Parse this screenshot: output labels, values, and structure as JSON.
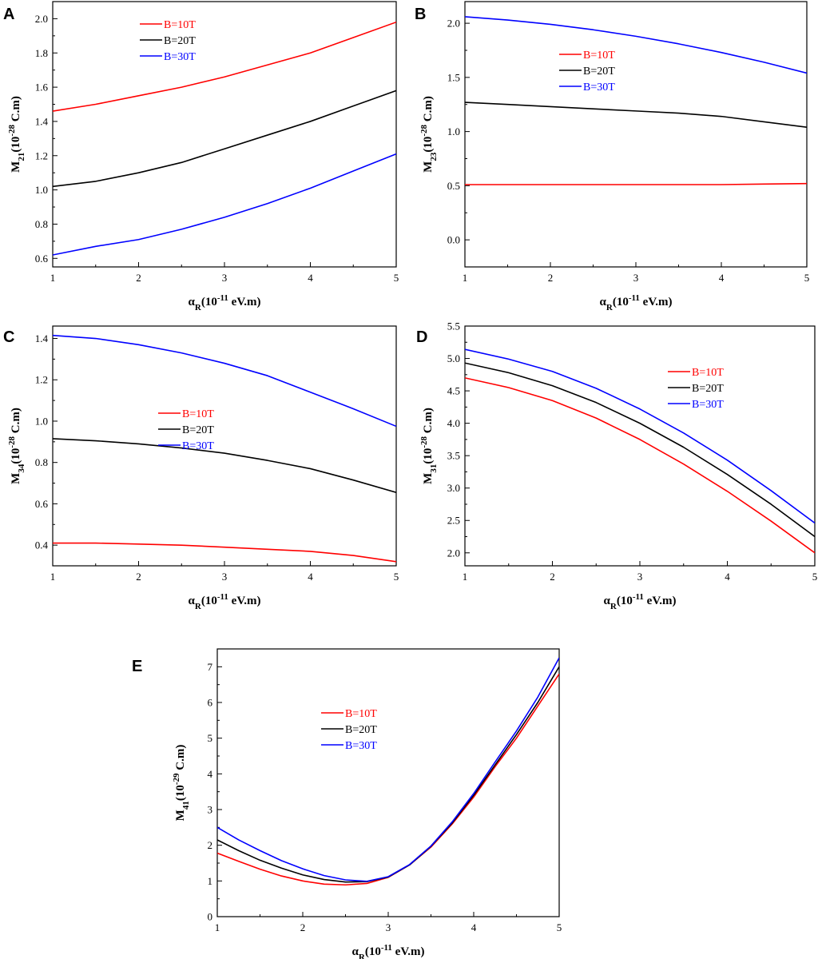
{
  "figure": {
    "panel_letters": [
      "A",
      "B",
      "C",
      "D",
      "E"
    ]
  },
  "colors": {
    "B10": "#ff0000",
    "B20": "#000000",
    "B30": "#0000ff"
  },
  "chart_data": [
    {
      "type": "line",
      "panel": "A",
      "ylabel": {
        "base": "M",
        "sub": "21",
        "pre": "(10",
        "sup": "-28",
        "post": " C.m)"
      },
      "xlabel": {
        "base": "α",
        "sub": "R",
        "pre": "(10",
        "sup": "-11",
        "post": " eV.m)"
      },
      "xlim": [
        1,
        5
      ],
      "ylim": [
        0.55,
        2.1
      ],
      "xticks": [
        1,
        2,
        3,
        4,
        5
      ],
      "yticks": [
        0.6,
        0.8,
        1.0,
        1.2,
        1.4,
        1.6,
        1.8,
        2.0
      ],
      "yticklabels": [
        "0.6",
        "0.8",
        "1.0",
        "1.2",
        "1.4",
        "1.6",
        "1.8",
        "2.0"
      ],
      "legend": {
        "position": "top-left"
      },
      "x": [
        1,
        1.5,
        2,
        2.5,
        3,
        3.5,
        4,
        4.5,
        5
      ],
      "series": [
        {
          "name": "B=10T",
          "color": "#ff0000",
          "values": [
            1.46,
            1.5,
            1.55,
            1.6,
            1.66,
            1.73,
            1.8,
            1.89,
            1.98
          ]
        },
        {
          "name": "B=20T",
          "color": "#000000",
          "values": [
            1.02,
            1.05,
            1.1,
            1.16,
            1.24,
            1.32,
            1.4,
            1.49,
            1.58
          ]
        },
        {
          "name": "B=30T",
          "color": "#0000ff",
          "values": [
            0.62,
            0.67,
            0.71,
            0.77,
            0.84,
            0.92,
            1.01,
            1.11,
            1.21
          ]
        }
      ]
    },
    {
      "type": "line",
      "panel": "B",
      "ylabel": {
        "base": "M",
        "sub": "23",
        "pre": "(10",
        "sup": "-28",
        "post": " C.m)"
      },
      "xlabel": {
        "base": "α",
        "sub": "R",
        "pre": "(10",
        "sup": "-11",
        "post": " eV.m)"
      },
      "xlim": [
        1,
        5
      ],
      "ylim": [
        -0.25,
        2.2
      ],
      "xticks": [
        1,
        2,
        3,
        4,
        5
      ],
      "yticks": [
        0,
        0.5,
        1.0,
        1.5,
        2.0
      ],
      "yticklabels": [
        "0.0",
        "0.5",
        "1.0",
        "1.5",
        "2.0"
      ],
      "legend": {
        "position": "upper-center"
      },
      "x": [
        1,
        1.5,
        2,
        2.5,
        3,
        3.5,
        4,
        4.5,
        5
      ],
      "series": [
        {
          "name": "B=10T",
          "color": "#ff0000",
          "values": [
            0.51,
            0.51,
            0.51,
            0.51,
            0.51,
            0.51,
            0.51,
            0.515,
            0.52
          ]
        },
        {
          "name": "B=20T",
          "color": "#000000",
          "values": [
            1.27,
            1.25,
            1.23,
            1.21,
            1.19,
            1.17,
            1.14,
            1.09,
            1.04
          ]
        },
        {
          "name": "B=30T",
          "color": "#0000ff",
          "values": [
            2.06,
            2.03,
            1.99,
            1.94,
            1.88,
            1.81,
            1.73,
            1.64,
            1.54
          ]
        }
      ]
    },
    {
      "type": "line",
      "panel": "C",
      "ylabel": {
        "base": "M",
        "sub": "34",
        "pre": "(10",
        "sup": "-28",
        "post": " C.m)"
      },
      "xlabel": {
        "base": "α",
        "sub": "R",
        "pre": "(10",
        "sup": "-11",
        "post": " eV.m)"
      },
      "xlim": [
        1,
        5
      ],
      "ylim": [
        0.3,
        1.46
      ],
      "xticks": [
        1,
        2,
        3,
        4,
        5
      ],
      "yticks": [
        0.4,
        0.6,
        0.8,
        1.0,
        1.2,
        1.4
      ],
      "yticklabels": [
        "0.4",
        "0.6",
        "0.8",
        "1.0",
        "1.2",
        "1.4"
      ],
      "legend": {
        "position": "center"
      },
      "x": [
        1,
        1.5,
        2,
        2.5,
        3,
        3.5,
        4,
        4.5,
        5
      ],
      "series": [
        {
          "name": "B=10T",
          "color": "#ff0000",
          "values": [
            0.41,
            0.41,
            0.405,
            0.4,
            0.39,
            0.38,
            0.37,
            0.35,
            0.32
          ]
        },
        {
          "name": "B=20T",
          "color": "#000000",
          "values": [
            0.915,
            0.905,
            0.89,
            0.87,
            0.845,
            0.81,
            0.77,
            0.715,
            0.655
          ]
        },
        {
          "name": "B=30T",
          "color": "#0000ff",
          "values": [
            1.415,
            1.4,
            1.37,
            1.33,
            1.28,
            1.22,
            1.14,
            1.06,
            0.975
          ]
        }
      ]
    },
    {
      "type": "line",
      "panel": "D",
      "ylabel": {
        "base": "M",
        "sub": "31",
        "pre": "(10",
        "sup": "-28",
        "post": " C.m)"
      },
      "xlabel": {
        "base": "α",
        "sub": "R",
        "pre": "(10",
        "sup": "-11",
        "post": " eV.m)"
      },
      "xlim": [
        1,
        5
      ],
      "ylim": [
        1.8,
        5.5
      ],
      "xticks": [
        1,
        2,
        3,
        4,
        5
      ],
      "yticks": [
        2.0,
        2.5,
        3.0,
        3.5,
        4.0,
        4.5,
        5.0,
        5.5
      ],
      "yticklabels": [
        "2.0",
        "2.5",
        "3.0",
        "3.5",
        "4.0",
        "4.5",
        "5.0",
        "5.5"
      ],
      "legend": {
        "position": "upper-center"
      },
      "x": [
        1,
        1.5,
        2,
        2.5,
        3,
        3.5,
        4,
        4.5,
        5
      ],
      "series": [
        {
          "name": "B=10T",
          "color": "#ff0000",
          "values": [
            4.7,
            4.55,
            4.35,
            4.08,
            3.75,
            3.37,
            2.95,
            2.49,
            2.0
          ]
        },
        {
          "name": "B=20T",
          "color": "#000000",
          "values": [
            4.93,
            4.78,
            4.58,
            4.32,
            4.0,
            3.63,
            3.21,
            2.75,
            2.25
          ]
        },
        {
          "name": "B=30T",
          "color": "#0000ff",
          "values": [
            5.14,
            4.99,
            4.8,
            4.54,
            4.22,
            3.85,
            3.43,
            2.96,
            2.46
          ]
        }
      ]
    },
    {
      "type": "line",
      "panel": "E",
      "ylabel": {
        "base": "M",
        "sub": "41",
        "pre": "(10",
        "sup": "-29",
        "post": " C.m)"
      },
      "xlabel": {
        "base": "α",
        "sub": "R",
        "pre": "(10",
        "sup": "-11",
        "post": " eV.m)"
      },
      "xlim": [
        1,
        5
      ],
      "ylim": [
        0,
        7.5
      ],
      "xticks": [
        1,
        2,
        3,
        4,
        5
      ],
      "yticks": [
        0,
        1,
        2,
        3,
        4,
        5,
        6,
        7
      ],
      "yticklabels": [
        "0",
        "1",
        "2",
        "3",
        "4",
        "5",
        "6",
        "7"
      ],
      "legend": {
        "position": "upper-center"
      },
      "x": [
        1,
        1.25,
        1.5,
        1.75,
        2,
        2.25,
        2.5,
        2.75,
        3,
        3.25,
        3.5,
        3.75,
        4,
        4.25,
        4.5,
        4.75,
        5
      ],
      "series": [
        {
          "name": "B=10T",
          "color": "#ff0000",
          "values": [
            1.78,
            1.55,
            1.33,
            1.14,
            1.0,
            0.91,
            0.89,
            0.93,
            1.1,
            1.45,
            1.95,
            2.6,
            3.35,
            4.2,
            5.0,
            5.9,
            6.8
          ]
        },
        {
          "name": "B=20T",
          "color": "#000000",
          "values": [
            2.15,
            1.85,
            1.58,
            1.36,
            1.17,
            1.04,
            0.97,
            0.98,
            1.11,
            1.45,
            1.97,
            2.63,
            3.4,
            4.25,
            5.1,
            6.0,
            7.0
          ]
        },
        {
          "name": "B=30T",
          "color": "#0000ff",
          "values": [
            2.5,
            2.15,
            1.85,
            1.57,
            1.34,
            1.15,
            1.03,
            0.99,
            1.12,
            1.46,
            1.98,
            2.66,
            3.45,
            4.33,
            5.2,
            6.15,
            7.25
          ]
        }
      ]
    }
  ]
}
